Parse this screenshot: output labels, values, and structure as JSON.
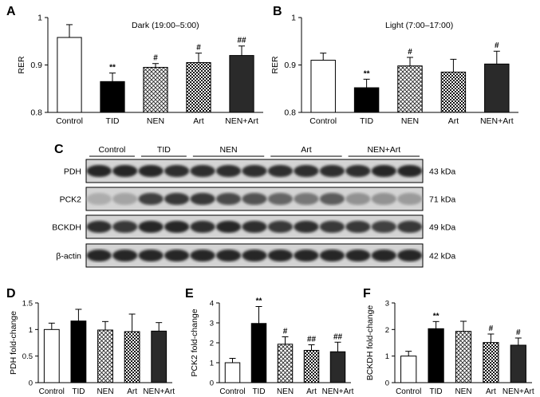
{
  "colors": {
    "Control": "#ffffff",
    "TID": "#000000",
    "NEN": "pattern-crosshatch",
    "Art": "pattern-checker",
    "NEN+Art": "#2a2a2a"
  },
  "chart_data": [
    {
      "panel": "A",
      "type": "bar",
      "title": "Dark (19:00–5:00)",
      "ylabel": "RER",
      "xlabel": "",
      "ylim": [
        0.8,
        1.0
      ],
      "yticks": [
        "0.8",
        "0.9",
        "1"
      ],
      "categories": [
        "Control",
        "TID",
        "NEN",
        "Art",
        "NEN+Art"
      ],
      "values": [
        0.958,
        0.865,
        0.895,
        0.905,
        0.92
      ],
      "errors": [
        0.027,
        0.018,
        0.008,
        0.02,
        0.02
      ],
      "annotations": [
        "",
        "**",
        "#",
        "#",
        "##"
      ]
    },
    {
      "panel": "B",
      "type": "bar",
      "title": "Light (7:00–17:00)",
      "ylabel": "RER",
      "xlabel": "",
      "ylim": [
        0.8,
        1.0
      ],
      "yticks": [
        "0.8",
        "0.9",
        "1"
      ],
      "categories": [
        "Control",
        "TID",
        "NEN",
        "Art",
        "NEN+Art"
      ],
      "values": [
        0.91,
        0.852,
        0.898,
        0.885,
        0.902
      ],
      "errors": [
        0.015,
        0.018,
        0.018,
        0.027,
        0.027
      ],
      "annotations": [
        "",
        "**",
        "#",
        "",
        "#"
      ]
    },
    {
      "panel": "D",
      "type": "bar",
      "title": "",
      "ylabel": "PDH fold-change",
      "xlabel": "",
      "ylim": [
        0,
        1.5
      ],
      "yticks": [
        "0",
        "0.5",
        "1",
        "1.5"
      ],
      "categories": [
        "Control",
        "TID",
        "NEN",
        "Art",
        "NEN+Art"
      ],
      "values": [
        1.0,
        1.16,
        0.99,
        0.96,
        0.97
      ],
      "errors": [
        0.12,
        0.22,
        0.16,
        0.33,
        0.16
      ],
      "annotations": [
        "",
        "",
        "",
        "",
        ""
      ]
    },
    {
      "panel": "E",
      "type": "bar",
      "title": "",
      "ylabel": "PCK2 fold-change",
      "xlabel": "",
      "ylim": [
        0,
        4
      ],
      "yticks": [
        "0",
        "1",
        "2",
        "3",
        "4"
      ],
      "categories": [
        "Control",
        "TID",
        "NEN",
        "Art",
        "NEN+Art"
      ],
      "values": [
        1.0,
        2.97,
        1.93,
        1.62,
        1.55
      ],
      "errors": [
        0.22,
        0.85,
        0.37,
        0.28,
        0.48
      ],
      "annotations": [
        "",
        "**",
        "#",
        "##",
        "##"
      ]
    },
    {
      "panel": "F",
      "type": "bar",
      "title": "",
      "ylabel": "BCKDH fold-change",
      "xlabel": "",
      "ylim": [
        0,
        3
      ],
      "yticks": [
        "0",
        "1",
        "2",
        "3"
      ],
      "categories": [
        "Control",
        "TID",
        "NEN",
        "Art",
        "NEN+Art"
      ],
      "values": [
        1.0,
        2.03,
        1.93,
        1.51,
        1.41
      ],
      "errors": [
        0.18,
        0.27,
        0.38,
        0.32,
        0.27
      ],
      "annotations": [
        "",
        "**",
        "",
        "#",
        "#"
      ]
    }
  ],
  "blot": {
    "panel": "C",
    "groups": [
      "Control",
      "TID",
      "NEN",
      "Art",
      "NEN+Art"
    ],
    "rows": [
      {
        "label": "PDH",
        "kda": "43 kDa"
      },
      {
        "label": "PCK2",
        "kda": "71 kDa"
      },
      {
        "label": "BCKDH",
        "kda": "49 kDa"
      },
      {
        "label": "β-actin",
        "kda": "42 kDa"
      }
    ]
  }
}
